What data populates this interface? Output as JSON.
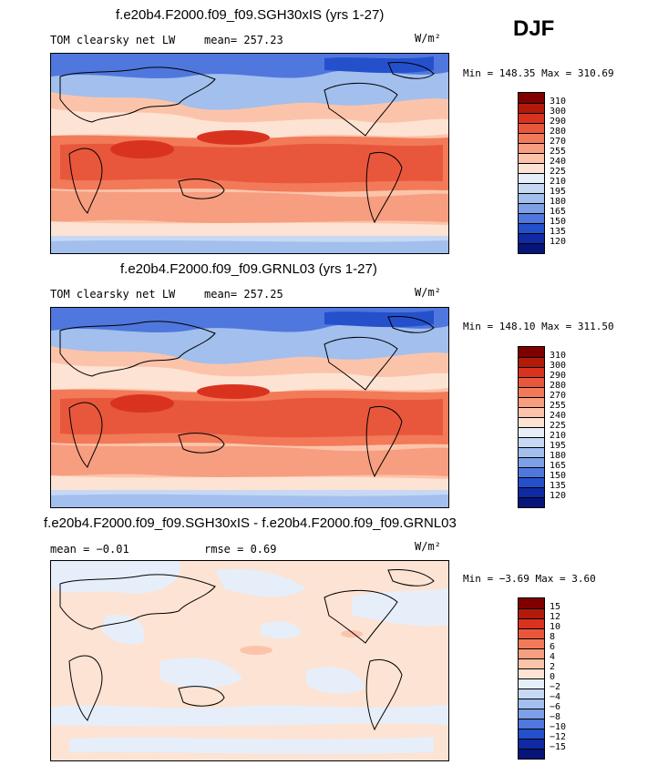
{
  "season": "DJF",
  "panels": [
    {
      "title": "f.e20b4.F2000.f09_f09.SGH30xIS (yrs 1-27)",
      "left_text": "TOM clearsky net LW",
      "mean_text": "mean= 257.23",
      "units": "W/m²",
      "minmax": "Min = 148.35 Max = 310.69",
      "colorbar_labels": [
        "310",
        "300",
        "290",
        "280",
        "270",
        "255",
        "240",
        "225",
        "210",
        "195",
        "180",
        "165",
        "150",
        "135",
        "120"
      ],
      "colorbar_colors": [
        "#800000",
        "#b21a0a",
        "#d93320",
        "#e8573c",
        "#f27a59",
        "#f79e80",
        "#fbc4aa",
        "#fde3d3",
        "#e6eefa",
        "#c6d8f3",
        "#a2bfee",
        "#7d9fe6",
        "#4f77dd",
        "#2450cc",
        "#0f2aa3",
        "#07157a"
      ]
    },
    {
      "title": "f.e20b4.F2000.f09_f09.GRNL03 (yrs 1-27)",
      "left_text": "TOM clearsky net LW",
      "mean_text": "mean= 257.25",
      "units": "W/m²",
      "minmax": "Min = 148.10 Max = 311.50",
      "colorbar_labels": [
        "310",
        "300",
        "290",
        "280",
        "270",
        "255",
        "240",
        "225",
        "210",
        "195",
        "180",
        "165",
        "150",
        "135",
        "120"
      ],
      "colorbar_colors": [
        "#800000",
        "#b21a0a",
        "#d93320",
        "#e8573c",
        "#f27a59",
        "#f79e80",
        "#fbc4aa",
        "#fde3d3",
        "#e6eefa",
        "#c6d8f3",
        "#a2bfee",
        "#7d9fe6",
        "#4f77dd",
        "#2450cc",
        "#0f2aa3",
        "#07157a"
      ]
    },
    {
      "title": "f.e20b4.F2000.f09_f09.SGH30xIS - f.e20b4.F2000.f09_f09.GRNL03",
      "left_text": "mean = −0.01",
      "mean_text": "rmse = 0.69",
      "units": "W/m²",
      "minmax": "Min = −3.69 Max = 3.60",
      "colorbar_labels": [
        "15",
        "12",
        "10",
        "8",
        "6",
        "4",
        "2",
        "0",
        "−2",
        "−4",
        "−6",
        "−8",
        "−10",
        "−12",
        "−15"
      ],
      "colorbar_colors": [
        "#800000",
        "#b21a0a",
        "#d93320",
        "#e8573c",
        "#f27a59",
        "#f79e80",
        "#fbc4aa",
        "#fde3d3",
        "#e6eefa",
        "#c6d8f3",
        "#a2bfee",
        "#7d9fe6",
        "#4f77dd",
        "#2450cc",
        "#0f2aa3",
        "#07157a"
      ]
    }
  ]
}
